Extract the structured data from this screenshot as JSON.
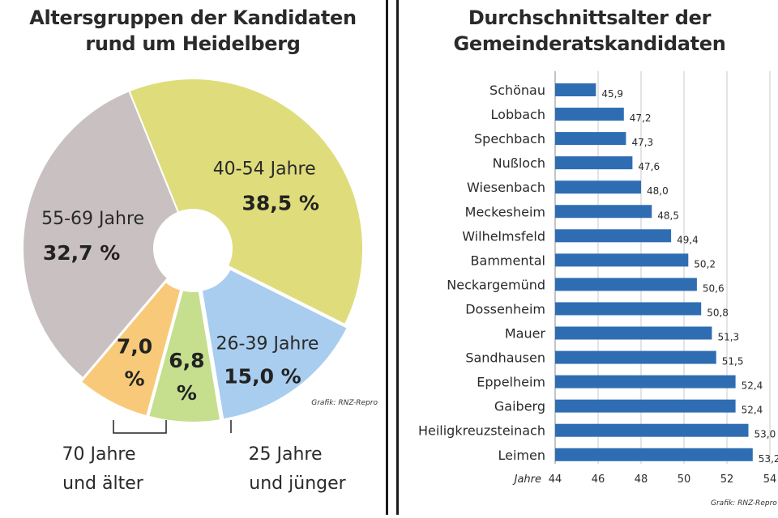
{
  "chart_data": [
    {
      "type": "pie",
      "title_lines": [
        "Altersgruppen der Kandidaten",
        "rund um Heidelberg"
      ],
      "donut": true,
      "credit": "Grafik: RNZ-Repro",
      "slices": [
        {
          "label": "40-54 Jahre",
          "value": 38.5,
          "value_label": "38,5 %",
          "color": "#dfdc7c"
        },
        {
          "label": "26-39 Jahre",
          "value": 15.0,
          "value_label": "15,0 %",
          "color": "#a9cdee"
        },
        {
          "label": "25 Jahre und jünger",
          "label_lines": [
            "25 Jahre",
            "und jünger"
          ],
          "value": 6.8,
          "value_label": "6,8 %",
          "value_lines": [
            "6,8",
            "%"
          ],
          "color": "#c5df8e"
        },
        {
          "label": "70 Jahre und älter",
          "label_lines": [
            "70 Jahre",
            "und älter"
          ],
          "value": 7.0,
          "value_label": "7,0 %",
          "value_lines": [
            "7,0",
            "%"
          ],
          "color": "#f8c978"
        },
        {
          "label": "55-69 Jahre",
          "value": 32.7,
          "value_label": "32,7 %",
          "color": "#c9c0c2"
        }
      ]
    },
    {
      "type": "bar",
      "orientation": "horizontal",
      "title_lines": [
        "Durchschnittsalter der",
        "Gemeinderatskandidaten"
      ],
      "xlabel": "Jahre",
      "xlim": [
        44,
        54
      ],
      "xticks": [
        44,
        46,
        48,
        50,
        52,
        54
      ],
      "grid": true,
      "credit": "Grafik: RNZ-Repro",
      "bar_color": "#2f6db3",
      "categories": [
        "Schönau",
        "Lobbach",
        "Spechbach",
        "Nußloch",
        "Wiesenbach",
        "Meckesheim",
        "Wilhelmsfeld",
        "Bammental",
        "Neckargemünd",
        "Dossenheim",
        "Mauer",
        "Sandhausen",
        "Eppelheim",
        "Gaiberg",
        "Heiligkreuzsteinach",
        "Leimen"
      ],
      "values": [
        45.9,
        47.2,
        47.3,
        47.6,
        48.0,
        48.5,
        49.4,
        50.2,
        50.6,
        50.8,
        51.3,
        51.5,
        52.4,
        52.4,
        53.0,
        53.2
      ],
      "value_labels": [
        "45,9",
        "47,2",
        "47,3",
        "47,6",
        "48,0",
        "48,5",
        "49,4",
        "50,2",
        "50,6",
        "50,8",
        "51,3",
        "51,5",
        "52,4",
        "52,4",
        "53,0",
        "53,2"
      ]
    }
  ]
}
